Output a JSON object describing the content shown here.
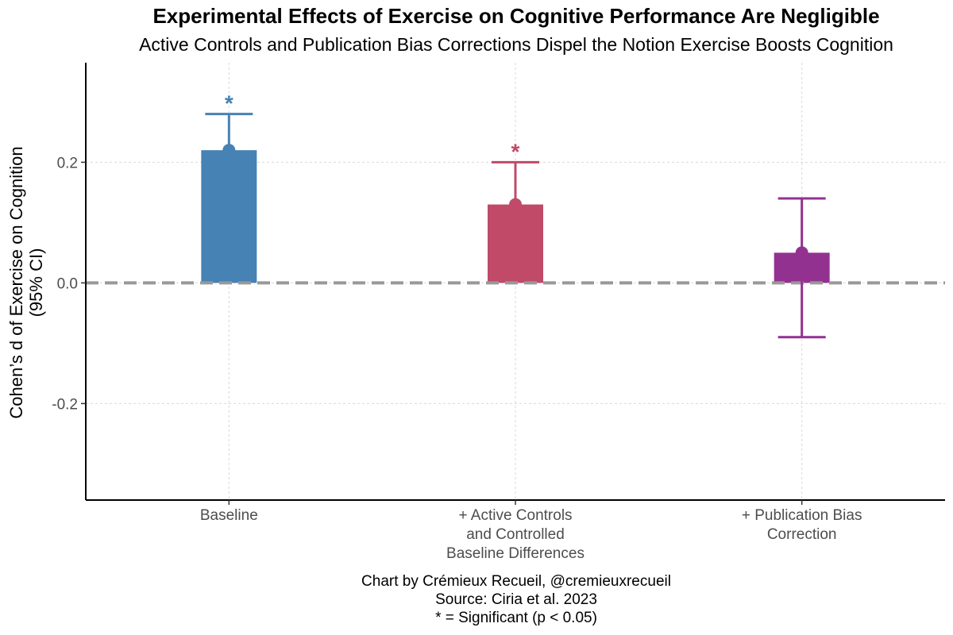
{
  "chart_data": {
    "type": "bar",
    "title": "Experimental Effects of Exercise on Cognitive Performance Are Negligible",
    "subtitle": "Active Controls and Publication Bias Corrections Dispel the Notion Exercise Boosts Cognition",
    "ylabel": [
      "Cohen’s d of Exercise on Cognition",
      "(95% CI)"
    ],
    "xlabel": "",
    "ylim": [
      -0.36,
      0.365
    ],
    "yticks": [
      -0.2,
      0.0,
      0.2
    ],
    "ytick_labels": [
      "-0.2",
      "0.0",
      "0.2"
    ],
    "grid": true,
    "reference_line": 0.0,
    "categories": [
      {
        "label_lines": [
          "Baseline"
        ],
        "value": 0.22,
        "ci_low": 0.16,
        "ci_high": 0.28,
        "color": "#4682B4",
        "significant": true
      },
      {
        "label_lines": [
          "+ Active Controls",
          "and Controlled",
          "Baseline Differences"
        ],
        "value": 0.13,
        "ci_low": 0.06,
        "ci_high": 0.2,
        "color": "#C04A68",
        "significant": true
      },
      {
        "label_lines": [
          "+ Publication Bias",
          "Correction"
        ],
        "value": 0.05,
        "ci_low": -0.09,
        "ci_high": 0.14,
        "color": "#933190",
        "significant": false
      }
    ],
    "significance_marker": "*",
    "caption": [
      "Chart by Crémieux Recueil, @cremieuxrecueil",
      "Source: Ciria et al. 2023",
      "* = Significant (p < 0.05)"
    ]
  }
}
